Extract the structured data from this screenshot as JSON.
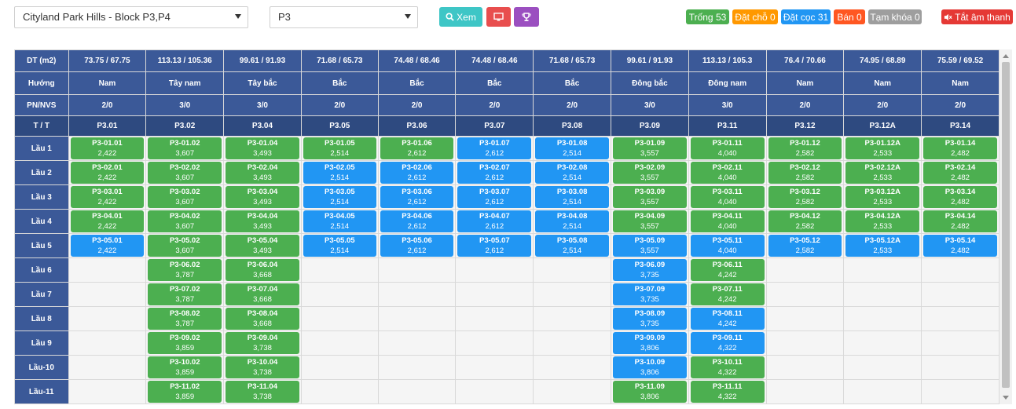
{
  "toolbar": {
    "project_select": "Cityland Park Hills - Block P3,P4",
    "block_select": "P3",
    "view_button": "Xem",
    "icons": {
      "view": "search-icon",
      "screen": "monitor-icon",
      "trophy": "trophy-icon",
      "mute": "speaker-mute-icon"
    },
    "mute_label": "Tắt âm thanh"
  },
  "colors": {
    "trong": "#4caf50",
    "dat_cho": "#ff9800",
    "dat_coc": "#2196f3",
    "ban": "#ff5722",
    "tam_khoa": "#9e9e9e",
    "view_button": "#3ec6c6",
    "screen_button": "#e84e4e",
    "trophy_button": "#9b4fc0",
    "mute_button": "#e53935",
    "header": "#3b5998"
  },
  "legend": [
    {
      "key": "trong",
      "label": "Trống 53"
    },
    {
      "key": "dat_cho",
      "label": "Đặt chỗ 0"
    },
    {
      "key": "dat_coc",
      "label": "Đặt cọc 31"
    },
    {
      "key": "ban",
      "label": "Bán 0"
    },
    {
      "key": "tam_khoa",
      "label": "Tạm khóa 0"
    }
  ],
  "grid": {
    "row_headers": {
      "area": "DT (m2)",
      "direction": "Hướng",
      "rooms": "PN/NVS",
      "unit": "T / T"
    },
    "columns": [
      {
        "area": "73.75 / 67.75",
        "direction": "Nam",
        "rooms": "2/0",
        "unit": "P3.01"
      },
      {
        "area": "113.13 / 105.36",
        "direction": "Tây nam",
        "rooms": "3/0",
        "unit": "P3.02"
      },
      {
        "area": "99.61 / 91.93",
        "direction": "Tây bắc",
        "rooms": "3/0",
        "unit": "P3.04"
      },
      {
        "area": "71.68 / 65.73",
        "direction": "Bắc",
        "rooms": "2/0",
        "unit": "P3.05"
      },
      {
        "area": "74.48 / 68.46",
        "direction": "Bắc",
        "rooms": "2/0",
        "unit": "P3.06"
      },
      {
        "area": "74.48 / 68.46",
        "direction": "Bắc",
        "rooms": "2/0",
        "unit": "P3.07"
      },
      {
        "area": "71.68 / 65.73",
        "direction": "Bắc",
        "rooms": "2/0",
        "unit": "P3.08"
      },
      {
        "area": "99.61 / 91.93",
        "direction": "Đông bắc",
        "rooms": "3/0",
        "unit": "P3.09"
      },
      {
        "area": "113.13 / 105.3",
        "direction": "Đông nam",
        "rooms": "3/0",
        "unit": "P3.11"
      },
      {
        "area": "76.4 / 70.66",
        "direction": "Nam",
        "rooms": "2/0",
        "unit": "P3.12"
      },
      {
        "area": "74.95 / 68.89",
        "direction": "Nam",
        "rooms": "2/0",
        "unit": "P3.12A"
      },
      {
        "area": "75.59 / 69.52",
        "direction": "Nam",
        "rooms": "2/0",
        "unit": "P3.14"
      }
    ],
    "floors": [
      {
        "label": "Lầu 1",
        "cells": [
          {
            "code": "P3-01.01",
            "price": "2,422",
            "status": "trong"
          },
          {
            "code": "P3-01.02",
            "price": "3,607",
            "status": "trong"
          },
          {
            "code": "P3-01.04",
            "price": "3,493",
            "status": "trong"
          },
          {
            "code": "P3-01.05",
            "price": "2,514",
            "status": "trong"
          },
          {
            "code": "P3-01.06",
            "price": "2,612",
            "status": "trong"
          },
          {
            "code": "P3-01.07",
            "price": "2,612",
            "status": "dat_coc"
          },
          {
            "code": "P3-01.08",
            "price": "2,514",
            "status": "dat_coc"
          },
          {
            "code": "P3-01.09",
            "price": "3,557",
            "status": "trong"
          },
          {
            "code": "P3-01.11",
            "price": "4,040",
            "status": "trong"
          },
          {
            "code": "P3-01.12",
            "price": "2,582",
            "status": "trong"
          },
          {
            "code": "P3-01.12A",
            "price": "2,533",
            "status": "trong"
          },
          {
            "code": "P3-01.14",
            "price": "2,482",
            "status": "trong"
          }
        ]
      },
      {
        "label": "Lầu 2",
        "cells": [
          {
            "code": "P3-02.01",
            "price": "2,422",
            "status": "trong"
          },
          {
            "code": "P3-02.02",
            "price": "3,607",
            "status": "trong"
          },
          {
            "code": "P3-02.04",
            "price": "3,493",
            "status": "trong"
          },
          {
            "code": "P3-02.05",
            "price": "2,514",
            "status": "dat_coc"
          },
          {
            "code": "P3-02.06",
            "price": "2,612",
            "status": "dat_coc"
          },
          {
            "code": "P3-02.07",
            "price": "2,612",
            "status": "dat_coc"
          },
          {
            "code": "P3-02.08",
            "price": "2,514",
            "status": "dat_coc"
          },
          {
            "code": "P3-02.09",
            "price": "3,557",
            "status": "trong"
          },
          {
            "code": "P3-02.11",
            "price": "4,040",
            "status": "trong"
          },
          {
            "code": "P3-02.12",
            "price": "2,582",
            "status": "trong"
          },
          {
            "code": "P3-02.12A",
            "price": "2,533",
            "status": "trong"
          },
          {
            "code": "P3-02.14",
            "price": "2,482",
            "status": "trong"
          }
        ]
      },
      {
        "label": "Lầu 3",
        "cells": [
          {
            "code": "P3-03.01",
            "price": "2,422",
            "status": "trong"
          },
          {
            "code": "P3-03.02",
            "price": "3,607",
            "status": "trong"
          },
          {
            "code": "P3-03.04",
            "price": "3,493",
            "status": "trong"
          },
          {
            "code": "P3-03.05",
            "price": "2,514",
            "status": "dat_coc"
          },
          {
            "code": "P3-03.06",
            "price": "2,612",
            "status": "dat_coc"
          },
          {
            "code": "P3-03.07",
            "price": "2,612",
            "status": "dat_coc"
          },
          {
            "code": "P3-03.08",
            "price": "2,514",
            "status": "dat_coc"
          },
          {
            "code": "P3-03.09",
            "price": "3,557",
            "status": "trong"
          },
          {
            "code": "P3-03.11",
            "price": "4,040",
            "status": "trong"
          },
          {
            "code": "P3-03.12",
            "price": "2,582",
            "status": "trong"
          },
          {
            "code": "P3-03.12A",
            "price": "2,533",
            "status": "trong"
          },
          {
            "code": "P3-03.14",
            "price": "2,482",
            "status": "trong"
          }
        ]
      },
      {
        "label": "Lầu 4",
        "cells": [
          {
            "code": "P3-04.01",
            "price": "2,422",
            "status": "trong"
          },
          {
            "code": "P3-04.02",
            "price": "3,607",
            "status": "trong"
          },
          {
            "code": "P3-04.04",
            "price": "3,493",
            "status": "trong"
          },
          {
            "code": "P3-04.05",
            "price": "2,514",
            "status": "dat_coc"
          },
          {
            "code": "P3-04.06",
            "price": "2,612",
            "status": "dat_coc"
          },
          {
            "code": "P3-04.07",
            "price": "2,612",
            "status": "dat_coc"
          },
          {
            "code": "P3-04.08",
            "price": "2,514",
            "status": "dat_coc"
          },
          {
            "code": "P3-04.09",
            "price": "3,557",
            "status": "trong"
          },
          {
            "code": "P3-04.11",
            "price": "4,040",
            "status": "trong"
          },
          {
            "code": "P3-04.12",
            "price": "2,582",
            "status": "trong"
          },
          {
            "code": "P3-04.12A",
            "price": "2,533",
            "status": "trong"
          },
          {
            "code": "P3-04.14",
            "price": "2,482",
            "status": "trong"
          }
        ]
      },
      {
        "label": "Lầu 5",
        "cells": [
          {
            "code": "P3-05.01",
            "price": "2,422",
            "status": "dat_coc"
          },
          {
            "code": "P3-05.02",
            "price": "3,607",
            "status": "trong"
          },
          {
            "code": "P3-05.04",
            "price": "3,493",
            "status": "trong"
          },
          {
            "code": "P3-05.05",
            "price": "2,514",
            "status": "dat_coc"
          },
          {
            "code": "P3-05.06",
            "price": "2,612",
            "status": "dat_coc"
          },
          {
            "code": "P3-05.07",
            "price": "2,612",
            "status": "dat_coc"
          },
          {
            "code": "P3-05.08",
            "price": "2,514",
            "status": "dat_coc"
          },
          {
            "code": "P3-05.09",
            "price": "3,557",
            "status": "dat_coc"
          },
          {
            "code": "P3-05.11",
            "price": "4,040",
            "status": "dat_coc"
          },
          {
            "code": "P3-05.12",
            "price": "2,582",
            "status": "dat_coc"
          },
          {
            "code": "P3-05.12A",
            "price": "2,533",
            "status": "dat_coc"
          },
          {
            "code": "P3-05.14",
            "price": "2,482",
            "status": "dat_coc"
          }
        ]
      },
      {
        "label": "Lầu 6",
        "cells": [
          null,
          {
            "code": "P3-06.02",
            "price": "3,787",
            "status": "trong"
          },
          {
            "code": "P3-06.04",
            "price": "3,668",
            "status": "trong"
          },
          null,
          null,
          null,
          null,
          {
            "code": "P3-06.09",
            "price": "3,735",
            "status": "dat_coc"
          },
          {
            "code": "P3-06.11",
            "price": "4,242",
            "status": "trong"
          },
          null,
          null,
          null
        ]
      },
      {
        "label": "Lầu 7",
        "cells": [
          null,
          {
            "code": "P3-07.02",
            "price": "3,787",
            "status": "trong"
          },
          {
            "code": "P3-07.04",
            "price": "3,668",
            "status": "trong"
          },
          null,
          null,
          null,
          null,
          {
            "code": "P3-07.09",
            "price": "3,735",
            "status": "dat_coc"
          },
          {
            "code": "P3-07.11",
            "price": "4,242",
            "status": "trong"
          },
          null,
          null,
          null
        ]
      },
      {
        "label": "Lầu 8",
        "cells": [
          null,
          {
            "code": "P3-08.02",
            "price": "3,787",
            "status": "trong"
          },
          {
            "code": "P3-08.04",
            "price": "3,668",
            "status": "trong"
          },
          null,
          null,
          null,
          null,
          {
            "code": "P3-08.09",
            "price": "3,735",
            "status": "dat_coc"
          },
          {
            "code": "P3-08.11",
            "price": "4,242",
            "status": "dat_coc"
          },
          null,
          null,
          null
        ]
      },
      {
        "label": "Lầu 9",
        "cells": [
          null,
          {
            "code": "P3-09.02",
            "price": "3,859",
            "status": "trong"
          },
          {
            "code": "P3-09.04",
            "price": "3,738",
            "status": "trong"
          },
          null,
          null,
          null,
          null,
          {
            "code": "P3-09.09",
            "price": "3,806",
            "status": "dat_coc"
          },
          {
            "code": "P3-09.11",
            "price": "4,322",
            "status": "dat_coc"
          },
          null,
          null,
          null
        ]
      },
      {
        "label": "Lầu-10",
        "cells": [
          null,
          {
            "code": "P3-10.02",
            "price": "3,859",
            "status": "trong"
          },
          {
            "code": "P3-10.04",
            "price": "3,738",
            "status": "trong"
          },
          null,
          null,
          null,
          null,
          {
            "code": "P3-10.09",
            "price": "3,806",
            "status": "dat_coc"
          },
          {
            "code": "P3-10.11",
            "price": "4,322",
            "status": "trong"
          },
          null,
          null,
          null
        ]
      },
      {
        "label": "Lầu-11",
        "cells": [
          null,
          {
            "code": "P3-11.02",
            "price": "3,859",
            "status": "trong"
          },
          {
            "code": "P3-11.04",
            "price": "3,738",
            "status": "trong"
          },
          null,
          null,
          null,
          null,
          {
            "code": "P3-11.09",
            "price": "3,806",
            "status": "trong"
          },
          {
            "code": "P3-11.11",
            "price": "4,322",
            "status": "trong"
          },
          null,
          null,
          null
        ]
      }
    ]
  }
}
